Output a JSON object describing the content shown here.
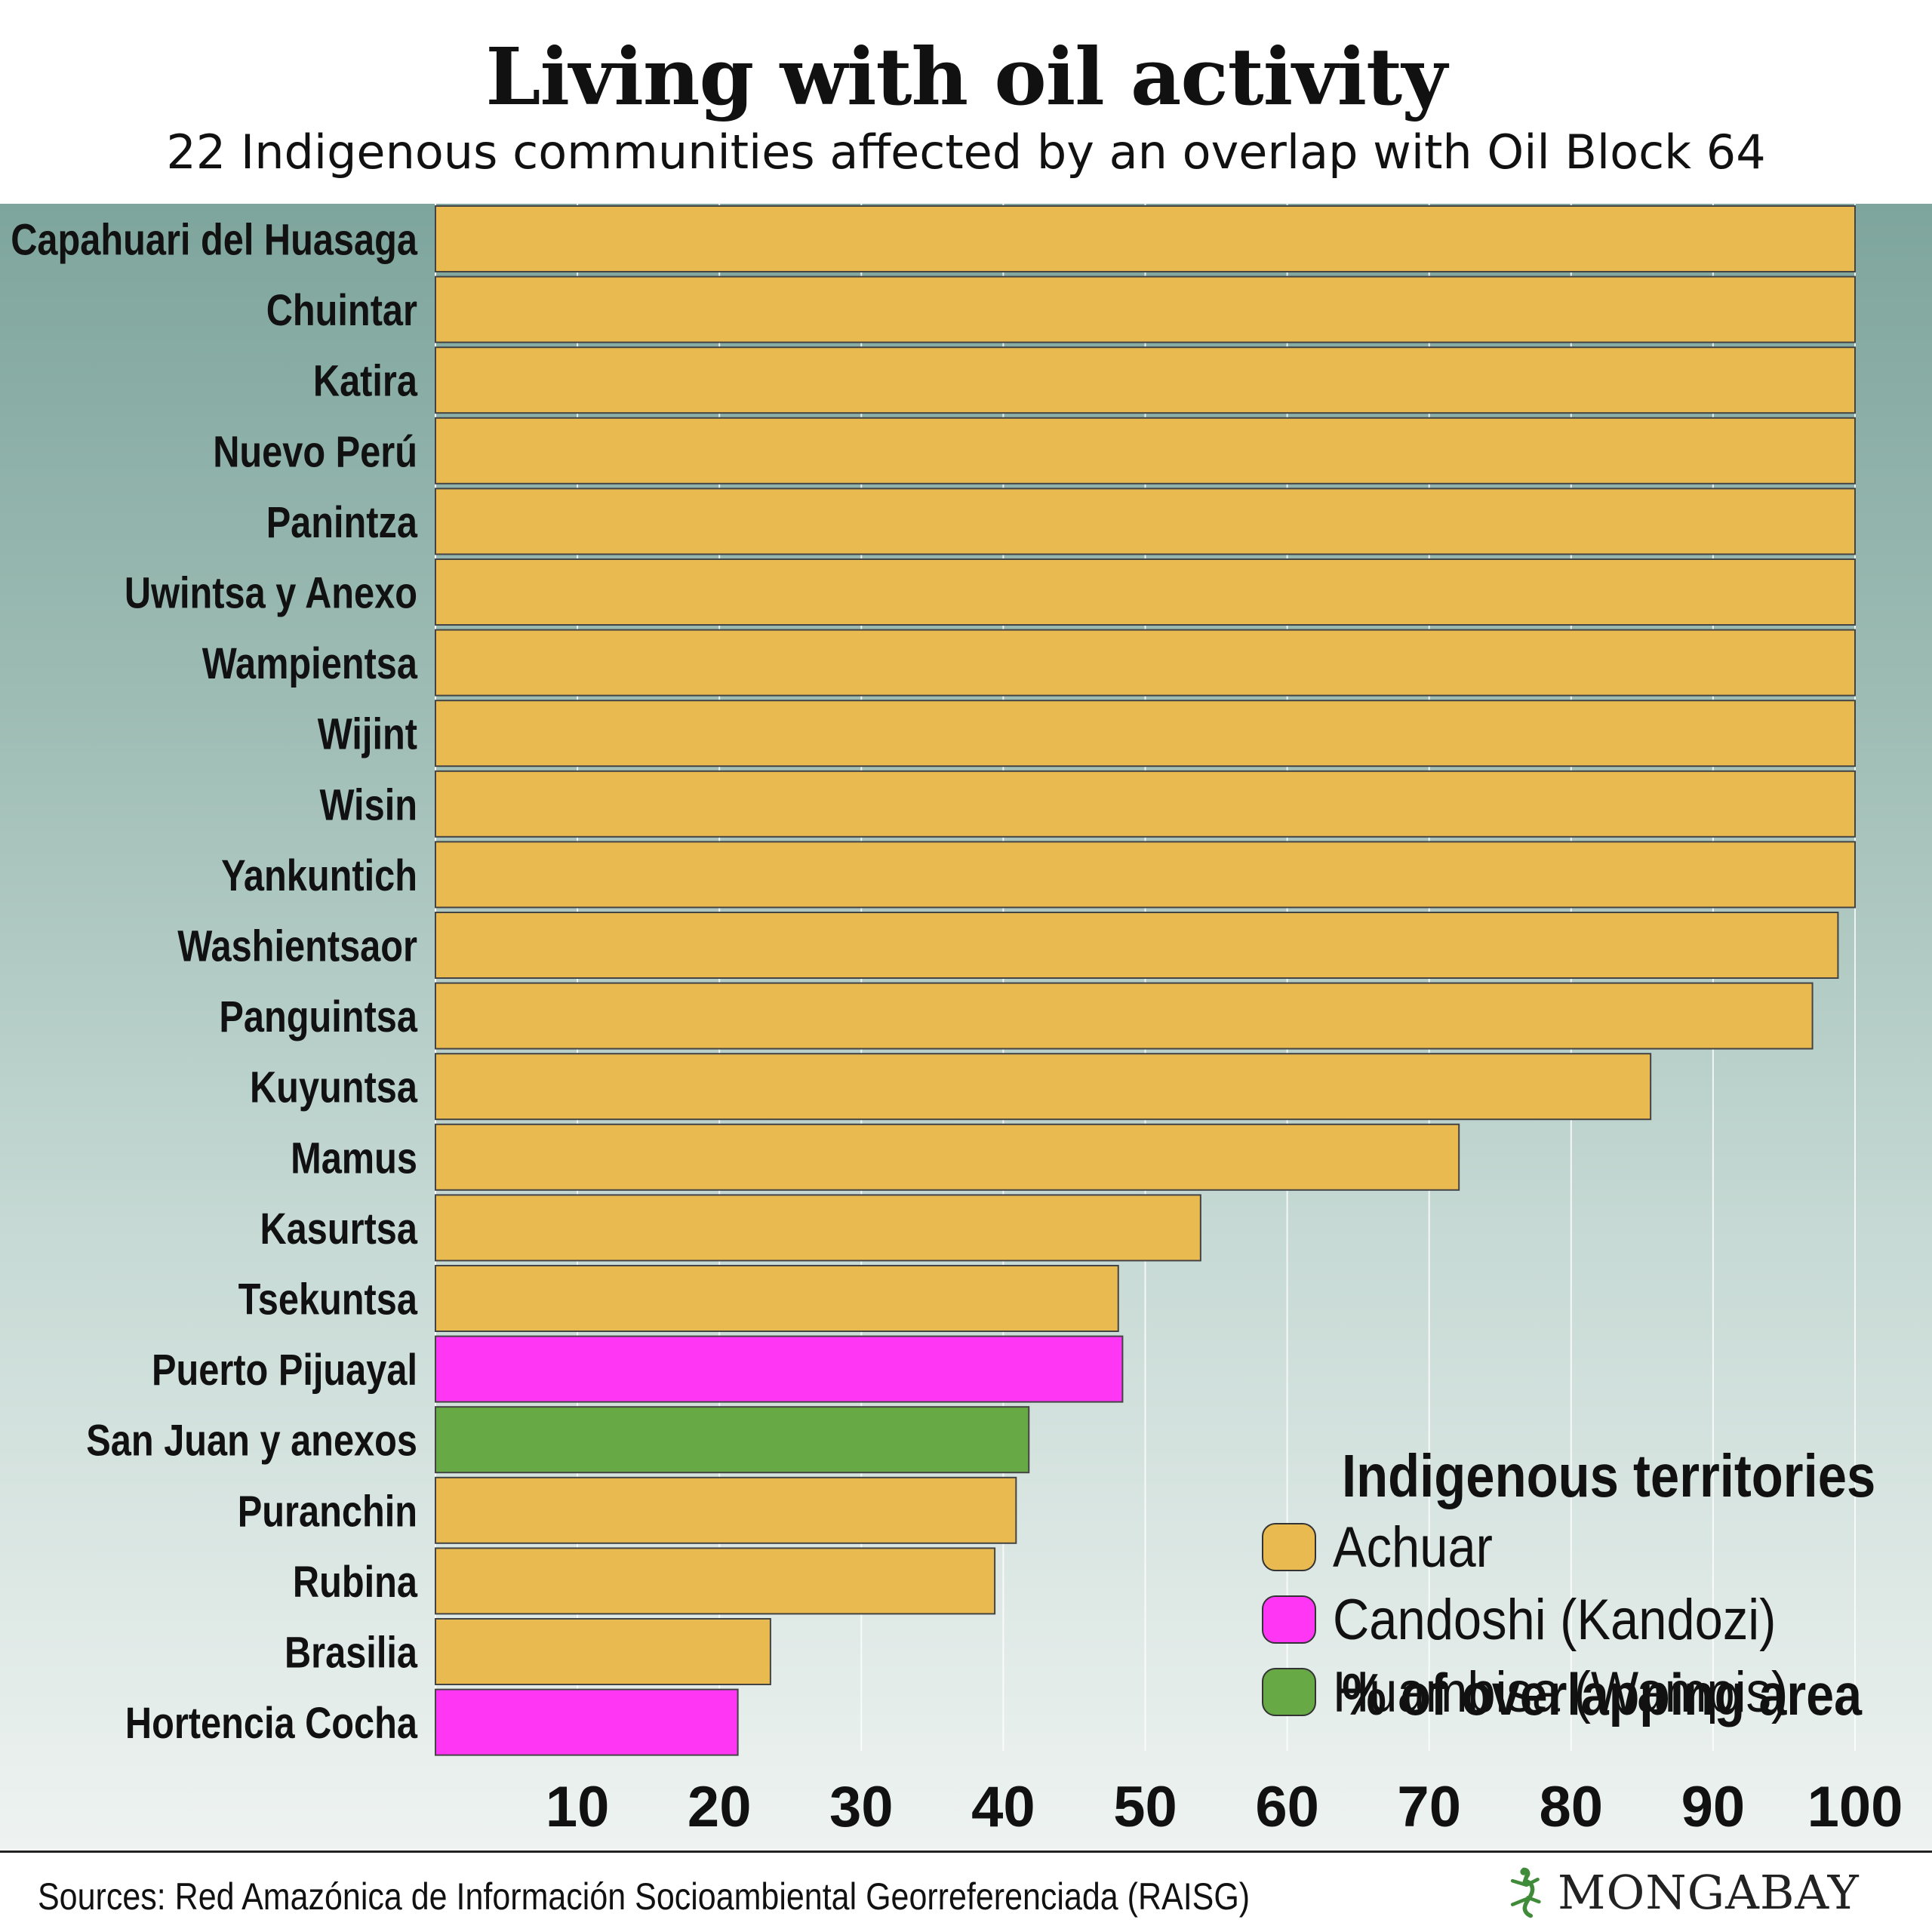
{
  "header": {
    "title": "Living with oil activity",
    "subtitle": "22 Indigenous communities  affected by an overlap with Oil Block 64"
  },
  "legend": {
    "title": "Indigenous territories",
    "items": [
      {
        "label": "Achuar",
        "color": "#e8ba50"
      },
      {
        "label": "Candoshi (Kandozi)",
        "color": "#ff37f5"
      },
      {
        "label": "Huambisa (Wampis)",
        "color": "#67a944"
      }
    ]
  },
  "unit_label": "% of overlapping area",
  "footer": {
    "source": "Sources: Red Amazónica de Información Socioambiental Georreferenciada (RAISG)",
    "brand": "MONGABAY",
    "brand_icon": "gecko-logo-icon"
  },
  "colors": {
    "Achuar": "#e8ba50",
    "Candoshi (Kandozi)": "#ff37f5",
    "Huambisa (Wampis)": "#67a944",
    "gridline": "#ffffff",
    "bar_outline": "#444444"
  },
  "chart_data": {
    "type": "bar",
    "orientation": "horizontal",
    "title": "Living with oil activity",
    "subtitle": "22 Indigenous communities  affected by an overlap with Oil Block 64",
    "xlabel": "% of overlapping area",
    "ylabel": "",
    "xlim": [
      0,
      100
    ],
    "xticks": [
      10,
      20,
      30,
      40,
      50,
      60,
      70,
      80,
      90,
      100
    ],
    "grid": "vertical",
    "legend_placement": "bottom-right",
    "categories": [
      "Capahuari del Huasaga",
      "Chuintar",
      "Katira",
      "Nuevo Perú",
      "Panintza",
      "Uwintsa y Anexo",
      "Wampientsa",
      "Wijint",
      "Wisin",
      "Yankuntich",
      "Washientsaor",
      "Panguintsa",
      "Kuyuntsa",
      "Mamus",
      "Kasurtsa",
      "Tsekuntsa",
      "Puerto Pijuayal",
      "San Juan y anexos",
      "Puranchin",
      "Rubina",
      "Brasilia",
      "Hortencia Cocha"
    ],
    "values": [
      100,
      100,
      100,
      100,
      100,
      100,
      100,
      100,
      100,
      100,
      98.8,
      97,
      85.6,
      72.1,
      53.9,
      48.1,
      48.4,
      41.8,
      40.9,
      39.4,
      23.6,
      21.3
    ],
    "groups": [
      "Achuar",
      "Achuar",
      "Achuar",
      "Achuar",
      "Achuar",
      "Achuar",
      "Achuar",
      "Achuar",
      "Achuar",
      "Achuar",
      "Achuar",
      "Achuar",
      "Achuar",
      "Achuar",
      "Achuar",
      "Achuar",
      "Candoshi (Kandozi)",
      "Huambisa (Wampis)",
      "Achuar",
      "Achuar",
      "Achuar",
      "Candoshi (Kandozi)"
    ]
  }
}
